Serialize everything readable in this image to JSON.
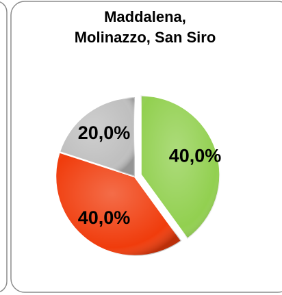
{
  "chart_data": {
    "type": "pie",
    "title": [
      "Maddalena,",
      "Molinazzo, San Siro"
    ],
    "categories": [
      null,
      null,
      null
    ],
    "values": [
      40,
      40,
      20
    ],
    "value_labels": [
      "40,0%",
      "40,0%",
      "20,0%"
    ],
    "colors": [
      "#92d050",
      "#f03c0c",
      "#bfbfbf"
    ]
  }
}
